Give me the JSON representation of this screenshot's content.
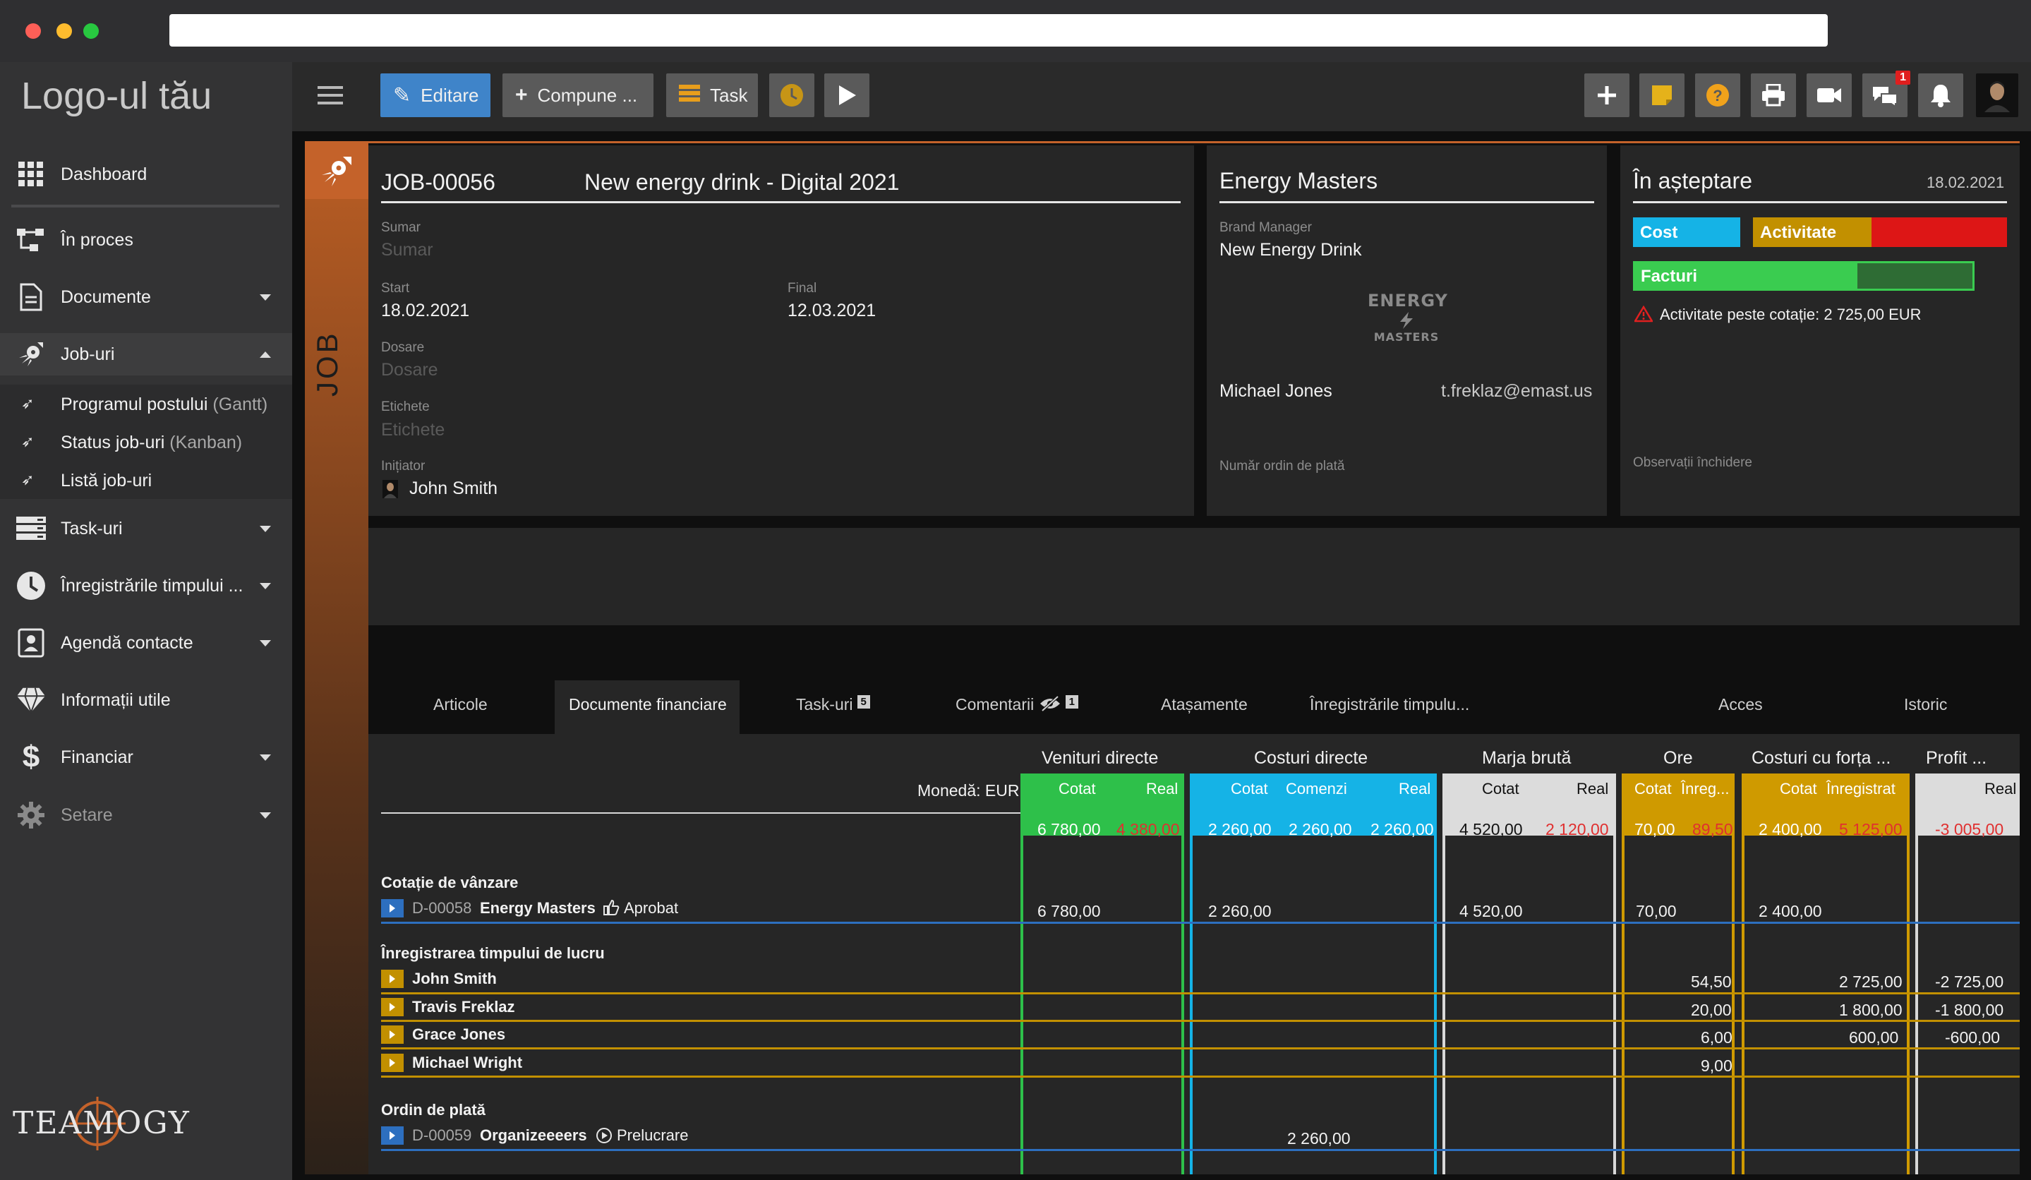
{
  "sidebar": {
    "logo": "Logo-ul tău",
    "items": [
      {
        "label": "Dashboard"
      },
      {
        "label": "În proces"
      },
      {
        "label": "Documente"
      },
      {
        "label": "Job-uri"
      },
      {
        "label": "Task-uri"
      },
      {
        "label": "Înregistrările timpului ..."
      },
      {
        "label": "Agendă contacte"
      },
      {
        "label": "Informații utile"
      },
      {
        "label": "Financiar"
      },
      {
        "label": "Setare"
      }
    ],
    "subitems": [
      {
        "label": "Programul postului",
        "muted": "(Gantt)"
      },
      {
        "label": "Status job-uri",
        "muted": "(Kanban)"
      },
      {
        "label": "Listă job-uri",
        "muted": ""
      }
    ],
    "brand": "TEAMOGY"
  },
  "toolbar": {
    "edit": "Editare",
    "compose": "Compune ...",
    "task": "Task",
    "chat_badge": "1"
  },
  "job": {
    "strip": "JOB",
    "code": "JOB-00056",
    "name": "New energy drink - Digital 2021",
    "summary_label": "Sumar",
    "summary_ph": "Sumar",
    "start_label": "Start",
    "start": "18.02.2021",
    "end_label": "Final",
    "end": "12.03.2021",
    "folders_label": "Dosare",
    "folders_ph": "Dosare",
    "tags_label": "Etichete",
    "tags_ph": "Etichete",
    "initiator_label": "Inițiator",
    "initiator": "John Smith"
  },
  "client": {
    "name": "Energy Masters",
    "role": "Brand Manager",
    "brand": "New Energy Drink",
    "logo_top": "ENERGY",
    "logo_bottom": "MASTERS",
    "contact": "Michael Jones",
    "email": "t.freklaz@emast.us",
    "po_label": "Număr ordin de plată"
  },
  "status": {
    "title": "În așteptare",
    "date": "18.02.2021",
    "cost": "Cost",
    "activity": "Activitate",
    "invoices": "Facturi",
    "warning": "Activitate peste cotație: 2 725,00 EUR",
    "notes_label": "Observații închidere"
  },
  "tabs": [
    {
      "label": "Articole",
      "badge": ""
    },
    {
      "label": "Documente financiare",
      "badge": ""
    },
    {
      "label": "Task-uri",
      "badge": "5"
    },
    {
      "label": "Comentarii",
      "badge": "1"
    },
    {
      "label": "Atașamente",
      "badge": ""
    },
    {
      "label": "Înregistrările timpulu...",
      "badge": ""
    },
    {
      "label": "Acces",
      "badge": ""
    },
    {
      "label": "Istoric",
      "badge": ""
    }
  ],
  "finance": {
    "currency": "Monedă: EUR",
    "groups": {
      "revenue": "Venituri directe",
      "costs": "Costuri directe",
      "margin": "Marja brută",
      "hours": "Ore",
      "labor": "Costuri cu forța ...",
      "profit": "Profit ..."
    },
    "sub": {
      "quoted": "Cotat",
      "real": "Real",
      "orders": "Comenzi",
      "registered_short": "Înreg...",
      "registered": "Înregistrat"
    },
    "totals": {
      "rev_quoted": "6 780,00",
      "rev_real": "4 380,00",
      "cost_quoted": "2 260,00",
      "cost_orders": "2 260,00",
      "cost_real": "2 260,00",
      "margin_quoted": "4 520,00",
      "margin_real": "2 120,00",
      "hours_quoted": "70,00",
      "hours_reg": "89,50",
      "labor_quoted": "2 400,00",
      "labor_reg": "5 125,00",
      "profit_real": "-3 005,00"
    },
    "sections": {
      "quote": "Cotație de vânzare",
      "time": "Înregistrarea timpului de lucru",
      "po": "Ordin de plată"
    },
    "quote_row": {
      "doc": "D-00058",
      "party": "Energy Masters",
      "state": "Aprobat",
      "rev": "6 780,00",
      "cost": "2 260,00",
      "margin": "4 520,00",
      "hours": "70,00",
      "labor": "2 400,00"
    },
    "people": [
      {
        "name": "John Smith",
        "hours": "54,50",
        "labor": "2 725,00",
        "profit": "-2 725,00"
      },
      {
        "name": "Travis Freklaz",
        "hours": "20,00",
        "labor": "1 800,00",
        "profit": "-1 800,00"
      },
      {
        "name": "Grace Jones",
        "hours": "6,00",
        "labor": "600,00",
        "profit": "-600,00"
      },
      {
        "name": "Michael Wright",
        "hours": "9,00",
        "labor": "",
        "profit": ""
      }
    ],
    "po_row": {
      "doc": "D-00059",
      "party": "Organizeeeers",
      "state": "Prelucrare",
      "orders": "2 260,00"
    }
  },
  "colors": {
    "revenue": "#2ec04a",
    "costs": "#15b3e6",
    "margin": "#d8d8d8",
    "hours": "#cf9a00",
    "profit": "#d8d8d8",
    "row_blue": "#2d6fbf",
    "row_gold": "#c29000",
    "negative": "#e03030",
    "accent": "#c4622a"
  }
}
